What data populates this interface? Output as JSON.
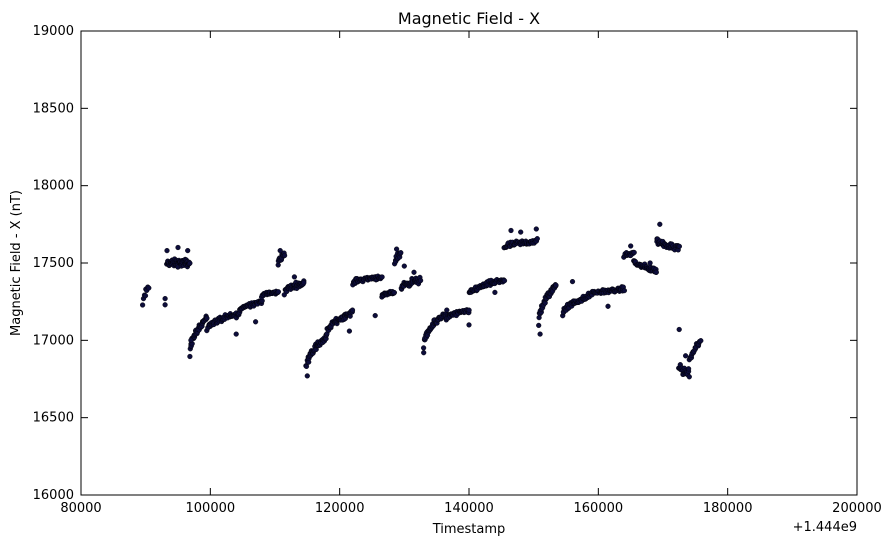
{
  "chart_data": {
    "type": "scatter",
    "title": "Magnetic Field - X",
    "xlabel": "Timestamp",
    "ylabel": "Magnetic Field - X (nT)",
    "offset_label": "+1.444e9",
    "xlim": [
      80000,
      200000
    ],
    "ylim": [
      16000,
      19000
    ],
    "xticks": [
      "80000",
      "100000",
      "120000",
      "140000",
      "160000",
      "180000",
      "200000"
    ],
    "yticks": [
      "16000",
      "16500",
      "17000",
      "17500",
      "18000",
      "18500",
      "19000"
    ],
    "grid": false,
    "point_color": "#0d0d3a",
    "segments": [
      {
        "x0": 89500,
        "x1": 90500,
        "y0": 17220,
        "y1": 17340,
        "n": 8,
        "spread": 30
      },
      {
        "x0": 93300,
        "x1": 96800,
        "y0": 17500,
        "y1": 17500,
        "n": 65,
        "spread": 35
      },
      {
        "x0": 96800,
        "x1": 99500,
        "y0": 16900,
        "y1": 17150,
        "n": 40,
        "spread": 25
      },
      {
        "x0": 99500,
        "x1": 104500,
        "y0": 17070,
        "y1": 17170,
        "n": 60,
        "spread": 25
      },
      {
        "x0": 104500,
        "x1": 108000,
        "y0": 17190,
        "y1": 17250,
        "n": 45,
        "spread": 20
      },
      {
        "x0": 108000,
        "x1": 110500,
        "y0": 17290,
        "y1": 17310,
        "n": 30,
        "spread": 15
      },
      {
        "x0": 110500,
        "x1": 111500,
        "y0": 17490,
        "y1": 17560,
        "n": 15,
        "spread": 30
      },
      {
        "x0": 111500,
        "x1": 114500,
        "y0": 17310,
        "y1": 17370,
        "n": 40,
        "spread": 25
      },
      {
        "x0": 114800,
        "x1": 118000,
        "y0": 16820,
        "y1": 17020,
        "n": 45,
        "spread": 35
      },
      {
        "x0": 118000,
        "x1": 122000,
        "y0": 17040,
        "y1": 17180,
        "n": 50,
        "spread": 25
      },
      {
        "x0": 122000,
        "x1": 126500,
        "y0": 17370,
        "y1": 17410,
        "n": 50,
        "spread": 20
      },
      {
        "x0": 126500,
        "x1": 128500,
        "y0": 17280,
        "y1": 17310,
        "n": 25,
        "spread": 15
      },
      {
        "x0": 128500,
        "x1": 129500,
        "y0": 17500,
        "y1": 17560,
        "n": 12,
        "spread": 30
      },
      {
        "x0": 129500,
        "x1": 132500,
        "y0": 17340,
        "y1": 17390,
        "n": 40,
        "spread": 30
      },
      {
        "x0": 133000,
        "x1": 136500,
        "y0": 16950,
        "y1": 17180,
        "n": 45,
        "spread": 30
      },
      {
        "x0": 136500,
        "x1": 140000,
        "y0": 17140,
        "y1": 17190,
        "n": 40,
        "spread": 20
      },
      {
        "x0": 140000,
        "x1": 145500,
        "y0": 17290,
        "y1": 17390,
        "n": 60,
        "spread": 25
      },
      {
        "x0": 145500,
        "x1": 150500,
        "y0": 17600,
        "y1": 17640,
        "n": 55,
        "spread": 25
      },
      {
        "x0": 150800,
        "x1": 153500,
        "y0": 17100,
        "y1": 17360,
        "n": 40,
        "spread": 35
      },
      {
        "x0": 154500,
        "x1": 158500,
        "y0": 17170,
        "y1": 17280,
        "n": 50,
        "spread": 25
      },
      {
        "x0": 158500,
        "x1": 164000,
        "y0": 17290,
        "y1": 17330,
        "n": 60,
        "spread": 20
      },
      {
        "x0": 164000,
        "x1": 165500,
        "y0": 17550,
        "y1": 17560,
        "n": 18,
        "spread": 30
      },
      {
        "x0": 165500,
        "x1": 169000,
        "y0": 17520,
        "y1": 17450,
        "n": 45,
        "spread": 25
      },
      {
        "x0": 169000,
        "x1": 172500,
        "y0": 17650,
        "y1": 17600,
        "n": 40,
        "spread": 30
      },
      {
        "x0": 172500,
        "x1": 174000,
        "y0": 16840,
        "y1": 16780,
        "n": 20,
        "spread": 30
      },
      {
        "x0": 174000,
        "x1": 175800,
        "y0": 16820,
        "y1": 16990,
        "n": 20,
        "spread": 25
      }
    ],
    "outliers": [
      {
        "x": 93000,
        "y": 17230
      },
      {
        "x": 93000,
        "y": 17270
      },
      {
        "x": 93300,
        "y": 17580
      },
      {
        "x": 95000,
        "y": 17600
      },
      {
        "x": 96500,
        "y": 17580
      },
      {
        "x": 97000,
        "y": 17000
      },
      {
        "x": 104000,
        "y": 17040
      },
      {
        "x": 107000,
        "y": 17120
      },
      {
        "x": 110800,
        "y": 17580
      },
      {
        "x": 113000,
        "y": 17410
      },
      {
        "x": 115000,
        "y": 16770
      },
      {
        "x": 121500,
        "y": 17060
      },
      {
        "x": 125500,
        "y": 17160
      },
      {
        "x": 128800,
        "y": 17590
      },
      {
        "x": 130000,
        "y": 17480
      },
      {
        "x": 131500,
        "y": 17440
      },
      {
        "x": 133000,
        "y": 16920
      },
      {
        "x": 140000,
        "y": 17100
      },
      {
        "x": 144000,
        "y": 17310
      },
      {
        "x": 146500,
        "y": 17710
      },
      {
        "x": 148000,
        "y": 17700
      },
      {
        "x": 150400,
        "y": 17720
      },
      {
        "x": 151000,
        "y": 17040
      },
      {
        "x": 156000,
        "y": 17380
      },
      {
        "x": 161500,
        "y": 17220
      },
      {
        "x": 165000,
        "y": 17610
      },
      {
        "x": 168000,
        "y": 17500
      },
      {
        "x": 169500,
        "y": 17750
      },
      {
        "x": 172500,
        "y": 17070
      },
      {
        "x": 173500,
        "y": 16900
      }
    ]
  }
}
